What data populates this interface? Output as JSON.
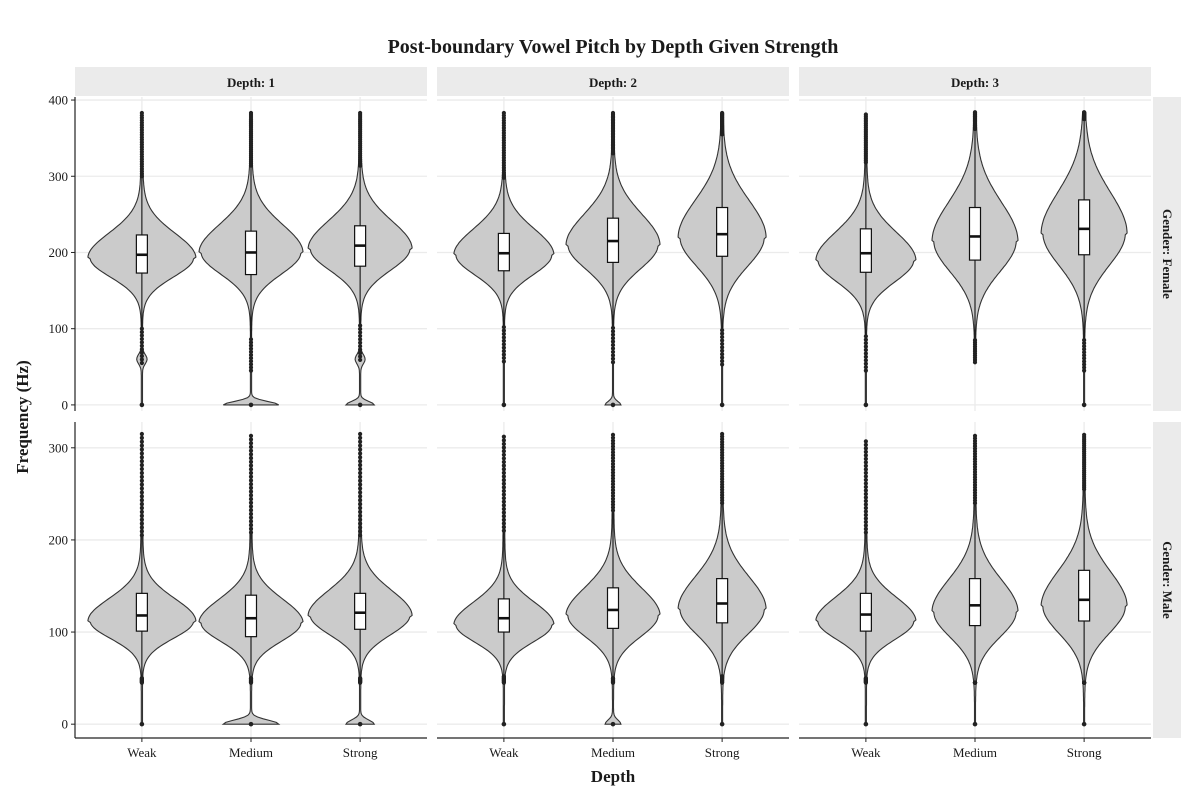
{
  "chart_data": {
    "type": "violin",
    "title": "Post-boundary Vowel Pitch by Depth Given Strength",
    "xlabel": "Depth",
    "ylabel": "Frequency (Hz)",
    "categories": [
      "Weak",
      "Medium",
      "Strong"
    ],
    "grid": true,
    "fill_color": "#cbcbcb",
    "strip_color": "#ebebeb",
    "columns": [
      {
        "label": "Depth: 1",
        "depth": 1
      },
      {
        "label": "Depth: 2",
        "depth": 2
      },
      {
        "label": "Depth: 3",
        "depth": 3
      }
    ],
    "rows": [
      {
        "label": "Gender: Female",
        "ylim": [
          -8,
          404
        ],
        "yticks": [
          0,
          100,
          200,
          300,
          400
        ]
      },
      {
        "label": "Gender: Male",
        "ylim": [
          -15,
          328
        ],
        "yticks": [
          0,
          100,
          200,
          300
        ]
      }
    ],
    "panels": [
      {
        "row": 0,
        "col": 0,
        "violins": [
          {
            "category": "Weak",
            "q1": 173,
            "median": 197,
            "q3": 223,
            "whisker_low": 100,
            "whisker_high": 300,
            "max": 383,
            "min": 0,
            "mode": 193,
            "hw": 54,
            "spread": 24,
            "low_shoulder": 60,
            "zero_blob": 0
          },
          {
            "category": "Medium",
            "q1": 171,
            "median": 200,
            "q3": 228,
            "whisker_low": 86,
            "whisker_high": 314,
            "max": 383,
            "min": 0,
            "mode": 200,
            "hw": 52,
            "spread": 27,
            "low_shoulder": 0,
            "zero_blob": 1
          },
          {
            "category": "Strong",
            "q1": 182,
            "median": 209,
            "q3": 235,
            "whisker_low": 104,
            "whisker_high": 314,
            "max": 383,
            "min": 0,
            "mode": 205,
            "hw": 52,
            "spread": 27,
            "low_shoulder": 60,
            "zero_blob": 0.5
          }
        ]
      },
      {
        "row": 0,
        "col": 1,
        "violins": [
          {
            "category": "Weak",
            "q1": 176,
            "median": 199,
            "q3": 225,
            "whisker_low": 102,
            "whisker_high": 298,
            "max": 383,
            "min": 0,
            "mode": 197,
            "hw": 50,
            "spread": 25,
            "low_shoulder": 0,
            "zero_blob": 0
          },
          {
            "category": "Medium",
            "q1": 187,
            "median": 215,
            "q3": 245,
            "whisker_low": 101,
            "whisker_high": 330,
            "max": 383,
            "min": 0,
            "mode": 210,
            "hw": 47,
            "spread": 30,
            "low_shoulder": 0,
            "zero_blob": 0.3
          },
          {
            "category": "Strong",
            "q1": 195,
            "median": 224,
            "q3": 259,
            "whisker_low": 98,
            "whisker_high": 355,
            "max": 383,
            "min": 0,
            "mode": 220,
            "hw": 44,
            "spread": 36,
            "low_shoulder": 0,
            "zero_blob": 0
          }
        ]
      },
      {
        "row": 0,
        "col": 2,
        "violins": [
          {
            "category": "Weak",
            "q1": 174,
            "median": 199,
            "q3": 231,
            "whisker_low": 90,
            "whisker_high": 318,
            "max": 381,
            "min": 0,
            "mode": 190,
            "hw": 50,
            "spread": 27,
            "low_shoulder": 0,
            "zero_blob": 0
          },
          {
            "category": "Medium",
            "q1": 190,
            "median": 221,
            "q3": 259,
            "whisker_low": 85,
            "whisker_high": 362,
            "max": 384,
            "min": 56,
            "mode": 215,
            "hw": 43,
            "spread": 38,
            "low_shoulder": 0,
            "zero_blob": 0
          },
          {
            "category": "Strong",
            "q1": 197,
            "median": 231,
            "q3": 269,
            "whisker_low": 85,
            "whisker_high": 375,
            "max": 384,
            "min": 0,
            "mode": 225,
            "hw": 43,
            "spread": 40,
            "low_shoulder": 0,
            "zero_blob": 0
          }
        ]
      },
      {
        "row": 1,
        "col": 0,
        "violins": [
          {
            "category": "Weak",
            "q1": 101,
            "median": 118,
            "q3": 142,
            "whisker_low": 50,
            "whisker_high": 205,
            "max": 315,
            "min": 0,
            "mode": 112,
            "hw": 54,
            "spread": 18,
            "low_shoulder": 0,
            "zero_blob": 0
          },
          {
            "category": "Medium",
            "q1": 95,
            "median": 115,
            "q3": 140,
            "whisker_low": 50,
            "whisker_high": 208,
            "max": 313,
            "min": 0,
            "mode": 110,
            "hw": 52,
            "spread": 19,
            "low_shoulder": 0,
            "zero_blob": 1
          },
          {
            "category": "Strong",
            "q1": 103,
            "median": 121,
            "q3": 142,
            "whisker_low": 50,
            "whisker_high": 205,
            "max": 315,
            "min": 0,
            "mode": 118,
            "hw": 52,
            "spread": 20,
            "low_shoulder": 0,
            "zero_blob": 0.5
          }
        ]
      },
      {
        "row": 1,
        "col": 1,
        "violins": [
          {
            "category": "Weak",
            "q1": 100,
            "median": 115,
            "q3": 136,
            "whisker_low": 52,
            "whisker_high": 210,
            "max": 312,
            "min": 0,
            "mode": 108,
            "hw": 50,
            "spread": 18,
            "low_shoulder": 0,
            "zero_blob": 0
          },
          {
            "category": "Medium",
            "q1": 104,
            "median": 124,
            "q3": 148,
            "whisker_low": 50,
            "whisker_high": 232,
            "max": 314,
            "min": 0,
            "mode": 118,
            "hw": 47,
            "spread": 22,
            "low_shoulder": 0,
            "zero_blob": 0.3
          },
          {
            "category": "Strong",
            "q1": 110,
            "median": 131,
            "q3": 158,
            "whisker_low": 52,
            "whisker_high": 240,
            "max": 315,
            "min": 0,
            "mode": 125,
            "hw": 44,
            "spread": 26,
            "low_shoulder": 0,
            "zero_blob": 0
          }
        ]
      },
      {
        "row": 1,
        "col": 2,
        "violins": [
          {
            "category": "Weak",
            "q1": 101,
            "median": 119,
            "q3": 142,
            "whisker_low": 50,
            "whisker_high": 208,
            "max": 307,
            "min": 0,
            "mode": 112,
            "hw": 50,
            "spread": 19,
            "low_shoulder": 0,
            "zero_blob": 0
          },
          {
            "category": "Medium",
            "q1": 107,
            "median": 129,
            "q3": 158,
            "whisker_low": 45,
            "whisker_high": 240,
            "max": 313,
            "min": 0,
            "mode": 122,
            "hw": 43,
            "spread": 26,
            "low_shoulder": 0,
            "zero_blob": 0
          },
          {
            "category": "Strong",
            "q1": 112,
            "median": 135,
            "q3": 167,
            "whisker_low": 45,
            "whisker_high": 255,
            "max": 314,
            "min": 0,
            "mode": 128,
            "hw": 43,
            "spread": 28,
            "low_shoulder": 0,
            "zero_blob": 0
          }
        ]
      }
    ]
  }
}
